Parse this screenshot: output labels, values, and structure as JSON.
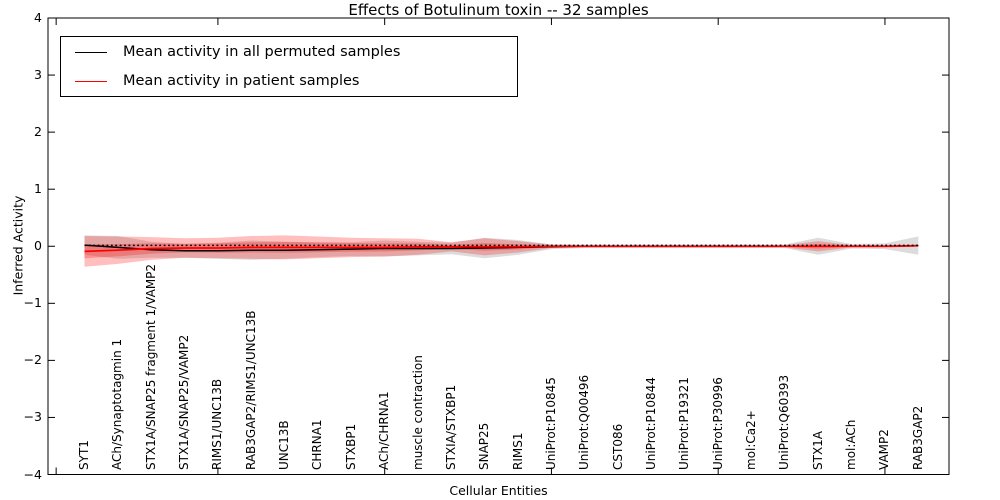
{
  "chart_data": {
    "type": "line",
    "title": "Effects of Botulinum toxin -- 32 samples",
    "xlabel": "Cellular Entities",
    "ylabel": "Inferred Activity",
    "ylim": [
      -4,
      4
    ],
    "yticks": [
      -4,
      -3,
      -2,
      -1,
      0,
      1,
      2,
      3,
      4
    ],
    "grid": false,
    "legend": {
      "position": "upper left",
      "entries": [
        {
          "label": "Mean activity in all permuted samples",
          "color": "#000000"
        },
        {
          "label": "Mean activity in patient samples",
          "color": "#ff0000"
        }
      ]
    },
    "categories": [
      "SYT1",
      "ACh/Synaptotagmin 1",
      "STX1A/SNAP25 fragment 1/VAMP2",
      "STX1A/SNAP25/VAMP2",
      "RIMS1/UNC13B",
      "RAB3GAP2/RIMS1/UNC13B",
      "UNC13B",
      "CHRNA1",
      "STXBP1",
      "ACh/CHRNA1",
      "muscle contraction",
      "STXIA/STXBP1",
      "SNAP25",
      "RIMS1",
      "UniProt:P10845",
      "UniProt:Q00496",
      "CST086",
      "UniProt:P10844",
      "UniProt:P19321",
      "UniProt:P30996",
      "mol:Ca2+",
      "UniProt:Q60393",
      "STX1A",
      "mol:ACh",
      "VAMP2",
      "RAB3GAP2"
    ],
    "series": [
      {
        "name": "Mean activity in all permuted samples",
        "color": "#000000",
        "band_color": "rgba(128,128,128,0.28)",
        "values": [
          0.02,
          -0.02,
          -0.06,
          -0.08,
          -0.08,
          -0.07,
          -0.07,
          -0.06,
          -0.05,
          -0.04,
          -0.04,
          -0.04,
          -0.03,
          -0.02,
          -0.01,
          0,
          0,
          0,
          0,
          0,
          0,
          0,
          0,
          0,
          0,
          0.01
        ],
        "std": [
          0.17,
          0.2,
          0.14,
          0.12,
          0.14,
          0.17,
          0.15,
          0.13,
          0.12,
          0.14,
          0.12,
          0.1,
          0.18,
          0.13,
          0.04,
          0.03,
          0.03,
          0.03,
          0.03,
          0.03,
          0.03,
          0.03,
          0.15,
          0.04,
          0.05,
          0.16
        ]
      },
      {
        "name": "Mean activity in patient samples",
        "color": "#ff0000",
        "band_color": "rgba(255,0,0,0.25)",
        "values": [
          -0.09,
          -0.07,
          -0.04,
          -0.03,
          -0.03,
          -0.02,
          -0.02,
          -0.02,
          -0.02,
          -0.02,
          -0.01,
          -0.01,
          -0.01,
          -0.01,
          0,
          0,
          0,
          0,
          0,
          0,
          0,
          0,
          0,
          0,
          0,
          0.01
        ],
        "std": [
          0.27,
          0.24,
          0.2,
          0.17,
          0.18,
          0.2,
          0.21,
          0.19,
          0.17,
          0.16,
          0.14,
          0.08,
          0.15,
          0.1,
          0.03,
          0.02,
          0.02,
          0.02,
          0.02,
          0.02,
          0.02,
          0.02,
          0.09,
          0.02,
          0.02,
          0.02
        ]
      }
    ],
    "reference_line": {
      "style": "dotted",
      "color": "#000000",
      "value": 0.015
    },
    "xticks_index": [
      -0.85,
      4,
      9,
      14,
      19,
      24
    ]
  }
}
